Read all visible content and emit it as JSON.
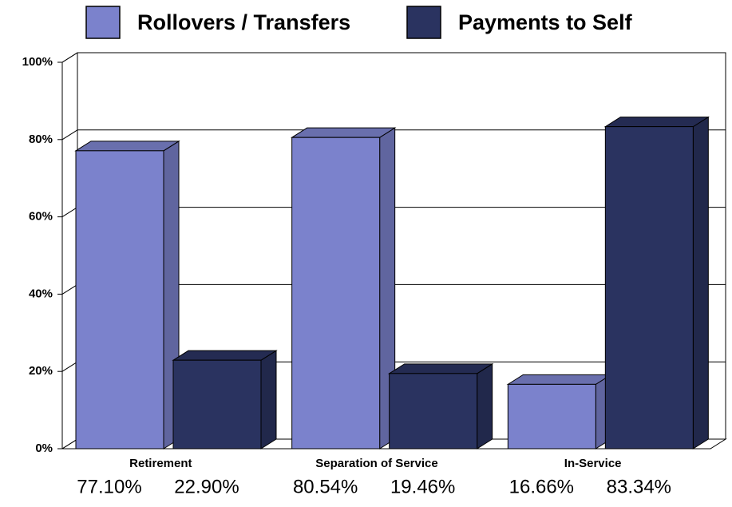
{
  "chart_data": {
    "type": "bar3d",
    "categories": [
      "Retirement",
      "Separation of Service",
      "In-Service"
    ],
    "series": [
      {
        "name": "Rollovers / Transfers",
        "color": "#7b82cc",
        "values": [
          77.1,
          80.54,
          16.66
        ],
        "value_labels": [
          "77.10%",
          "80.54%",
          "16.66%"
        ]
      },
      {
        "name": "Payments to Self",
        "color": "#2a3360",
        "values": [
          22.9,
          19.46,
          83.34
        ],
        "value_labels": [
          "22.90%",
          "19.46%",
          "83.34%"
        ]
      }
    ],
    "ylim": [
      0,
      100
    ],
    "yticks": [
      {
        "value": 0,
        "label": "0%"
      },
      {
        "value": 20,
        "label": "20%"
      },
      {
        "value": 40,
        "label": "40%"
      },
      {
        "value": 60,
        "label": "60%"
      },
      {
        "value": 80,
        "label": "80%"
      },
      {
        "value": 100,
        "label": "100%"
      }
    ],
    "grid": true,
    "legend": "top"
  }
}
